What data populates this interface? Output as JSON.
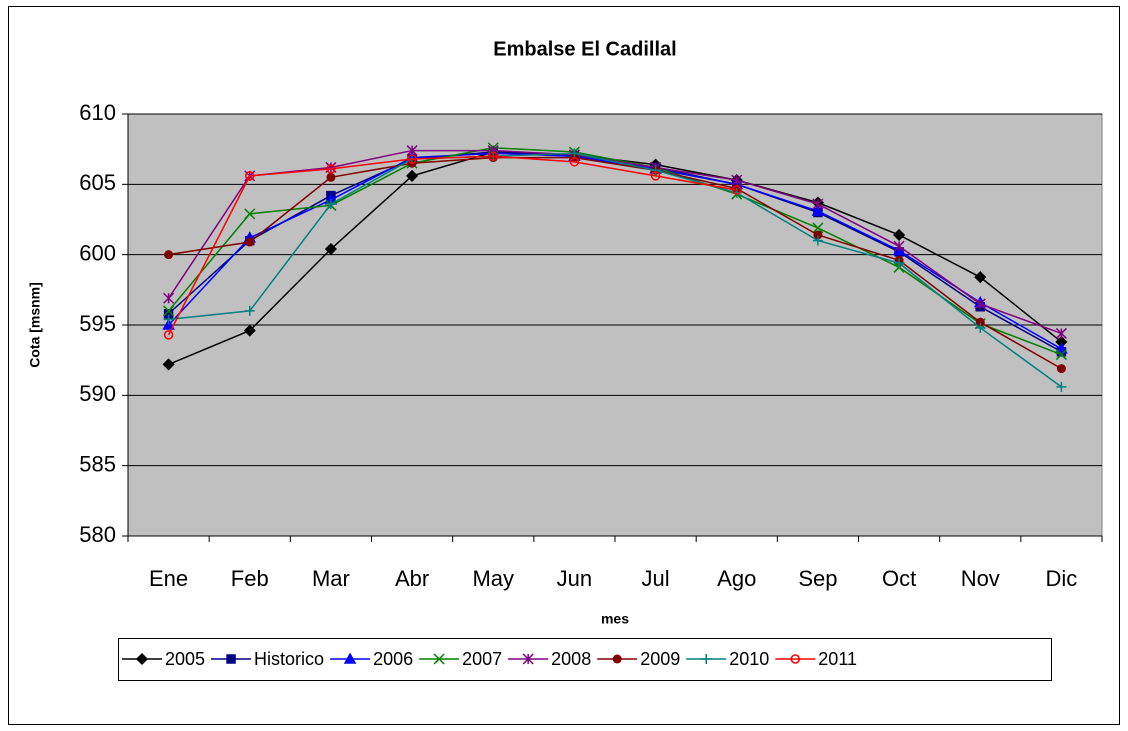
{
  "chart_data": {
    "type": "line",
    "title": "Embalse El Cadillal",
    "xlabel": "mes",
    "ylabel": "Cota [msnm]",
    "categories": [
      "Ene",
      "Feb",
      "Mar",
      "Abr",
      "May",
      "Jun",
      "Jul",
      "Ago",
      "Sep",
      "Oct",
      "Nov",
      "Dic"
    ],
    "ylim": [
      580,
      610
    ],
    "yticks": [
      580,
      585,
      590,
      595,
      600,
      605,
      610
    ],
    "grid": true,
    "legend": "bottom",
    "series": [
      {
        "name": "2005",
        "color": "#000000",
        "marker": "diamond",
        "values": [
          592.2,
          594.6,
          600.4,
          605.6,
          607.3,
          607.1,
          606.4,
          605.3,
          603.7,
          601.4,
          598.4,
          593.8
        ]
      },
      {
        "name": "Historico",
        "color": "#000080",
        "marker": "square",
        "values": [
          595.8,
          601.0,
          604.2,
          606.8,
          607.3,
          607.0,
          606.2,
          605.0,
          603.0,
          600.2,
          596.3,
          593.1
        ]
      },
      {
        "name": "2006",
        "color": "#0000ff",
        "marker": "triangle",
        "values": [
          595.0,
          601.2,
          603.9,
          606.9,
          607.2,
          607.0,
          606.1,
          605.0,
          603.1,
          600.3,
          596.6,
          593.3
        ]
      },
      {
        "name": "2007",
        "color": "#008000",
        "marker": "x",
        "values": [
          596.0,
          602.9,
          603.5,
          606.5,
          607.6,
          607.3,
          606.2,
          604.3,
          601.9,
          599.1,
          595.1,
          592.9
        ]
      },
      {
        "name": "2008",
        "color": "#800080",
        "marker": "star",
        "values": [
          596.9,
          605.6,
          606.2,
          607.4,
          607.4,
          607.1,
          606.2,
          605.3,
          603.6,
          600.6,
          596.5,
          594.4
        ]
      },
      {
        "name": "2009",
        "color": "#800000",
        "marker": "circle",
        "values": [
          600.0,
          600.9,
          605.5,
          606.5,
          606.9,
          606.9,
          606.0,
          604.7,
          601.4,
          599.6,
          595.2,
          591.9
        ]
      },
      {
        "name": "2010",
        "color": "#008080",
        "marker": "plus",
        "values": [
          595.4,
          596.0,
          603.6,
          606.8,
          607.0,
          607.2,
          606.0,
          604.4,
          601.0,
          599.4,
          594.8,
          590.6
        ]
      },
      {
        "name": "2011",
        "color": "#ff0000",
        "marker": "open-circle",
        "values": [
          594.3,
          605.6,
          606.1,
          606.8,
          607.0,
          606.6,
          605.6,
          604.6,
          null,
          null,
          null,
          null
        ]
      }
    ]
  }
}
